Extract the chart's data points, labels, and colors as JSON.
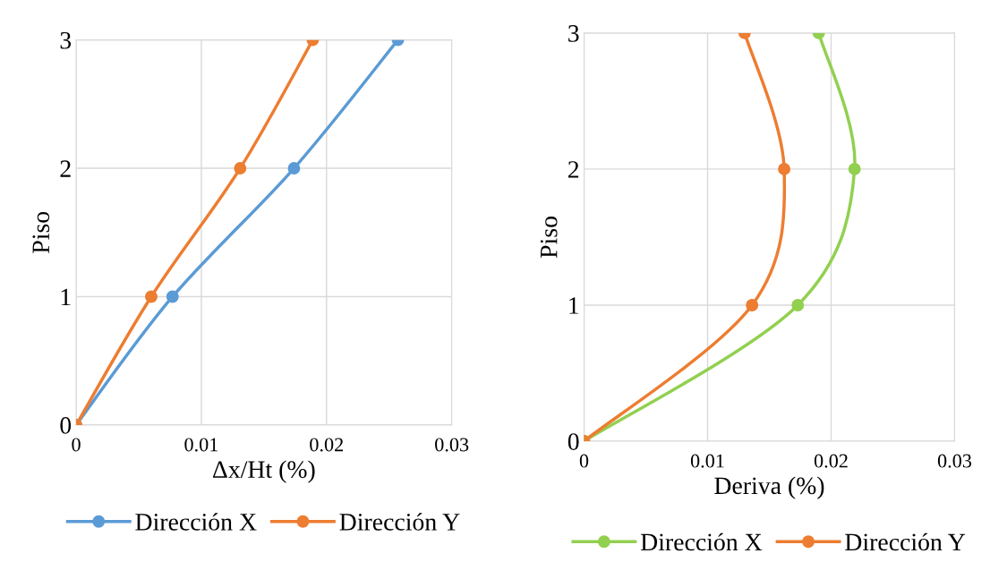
{
  "chart_data": [
    {
      "type": "line",
      "xlabel": "Δx/Ht (%)",
      "ylabel": "Piso",
      "xlim": [
        0,
        0.03
      ],
      "xticks": [
        0,
        0.01,
        0.02,
        0.03
      ],
      "ylim": [
        0,
        3
      ],
      "yticks": [
        0,
        1,
        2,
        3
      ],
      "grid": true,
      "legend": "bottom",
      "marker": "circle",
      "line_style": "solid",
      "series": [
        {
          "name": "Dirección X",
          "color": "#5b9bd5",
          "x": [
            0,
            0.0077,
            0.0174,
            0.0257
          ],
          "values": [
            0,
            1,
            2,
            3
          ]
        },
        {
          "name": "Dirección Y",
          "color": "#ed7d31",
          "x": [
            0,
            0.006,
            0.0131,
            0.0189
          ],
          "values": [
            0,
            1,
            2,
            3
          ]
        }
      ]
    },
    {
      "type": "line",
      "xlabel": "Deriva (%)",
      "ylabel": "Piso",
      "xlim": [
        0,
        0.03
      ],
      "xticks": [
        0,
        0.01,
        0.02,
        0.03
      ],
      "ylim": [
        0,
        3
      ],
      "yticks": [
        0,
        1,
        2,
        3
      ],
      "grid": true,
      "legend": "bottom",
      "marker": "circle",
      "line_style": "solid",
      "series": [
        {
          "name": "Dirección X",
          "color": "#92d050",
          "x": [
            0,
            0.0173,
            0.0219,
            0.019
          ],
          "values": [
            0,
            1,
            2,
            3
          ]
        },
        {
          "name": "Dirección Y",
          "color": "#ed7d31",
          "x": [
            0,
            0.0136,
            0.0162,
            0.013
          ],
          "values": [
            0,
            1,
            2,
            3
          ]
        }
      ]
    }
  ]
}
